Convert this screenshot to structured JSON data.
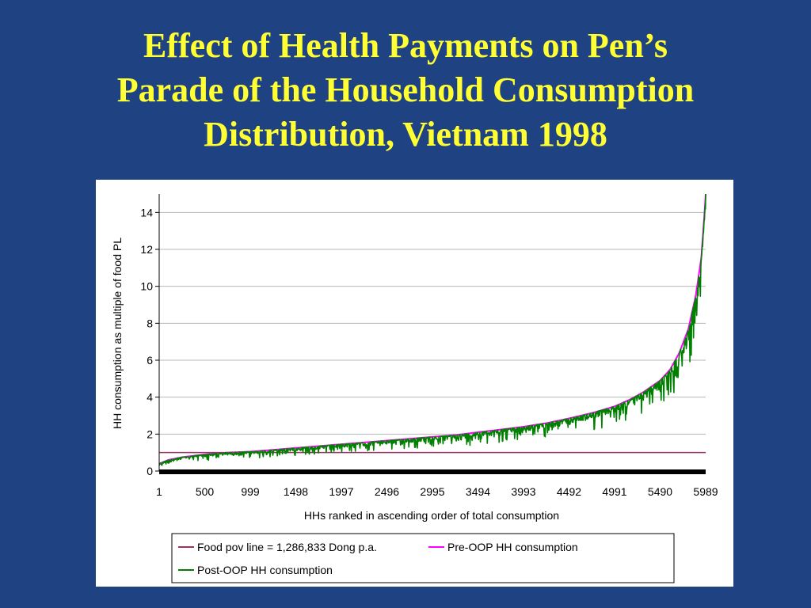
{
  "slide": {
    "title_lines": [
      "Effect of Health Payments on Pen’s",
      "Parade of the Household Consumption",
      "Distribution, Vietnam 1998"
    ]
  },
  "colors": {
    "background": "#1f4282",
    "title": "#ffff33",
    "panel": "#ffffff",
    "food_pov_line": "#993366",
    "pre_oop": "#ff00ff",
    "post_oop": "#008000"
  },
  "chart_data": {
    "type": "line",
    "title": "",
    "xlabel": "HHs ranked in ascending order of total consumption",
    "ylabel": "HH consumption as multiple of food PL",
    "xlim": [
      1,
      5989
    ],
    "ylim": [
      0,
      15
    ],
    "x_ticks": [
      "1",
      "500",
      "999",
      "1498",
      "1997",
      "2496",
      "2995",
      "3494",
      "3993",
      "4492",
      "4991",
      "5490",
      "5989"
    ],
    "y_ticks": [
      "0",
      "2",
      "4",
      "6",
      "8",
      "10",
      "12",
      "14"
    ],
    "grid": "horizontal",
    "legend_position": "bottom",
    "series": [
      {
        "name": "Food pov line = 1,286,833 Dong p.a.",
        "kind": "constant",
        "value": 1.0
      },
      {
        "name": "Pre-OOP HH consumption",
        "kind": "curve",
        "points": [
          [
            1,
            0.4
          ],
          [
            100,
            0.6
          ],
          [
            250,
            0.75
          ],
          [
            500,
            0.9
          ],
          [
            750,
            1.0
          ],
          [
            999,
            1.05
          ],
          [
            1250,
            1.15
          ],
          [
            1498,
            1.25
          ],
          [
            1750,
            1.35
          ],
          [
            1997,
            1.45
          ],
          [
            2250,
            1.55
          ],
          [
            2496,
            1.65
          ],
          [
            2750,
            1.75
          ],
          [
            2995,
            1.85
          ],
          [
            3250,
            1.95
          ],
          [
            3494,
            2.1
          ],
          [
            3750,
            2.25
          ],
          [
            3993,
            2.4
          ],
          [
            4250,
            2.6
          ],
          [
            4492,
            2.85
          ],
          [
            4750,
            3.15
          ],
          [
            4991,
            3.5
          ],
          [
            5150,
            3.85
          ],
          [
            5300,
            4.25
          ],
          [
            5490,
            4.9
          ],
          [
            5600,
            5.5
          ],
          [
            5700,
            6.4
          ],
          [
            5800,
            7.7
          ],
          [
            5880,
            9.5
          ],
          [
            5940,
            11.5
          ],
          [
            5970,
            13.5
          ],
          [
            5989,
            15.0
          ]
        ]
      },
      {
        "name": "Post-OOP HH consumption",
        "kind": "curve_with_downward_spikes",
        "note": "",
        "spikes": [
          [
            400,
            0.5
          ],
          [
            1300,
            0.8
          ],
          [
            1550,
            0.95
          ],
          [
            2100,
            1.05
          ],
          [
            2500,
            1.15
          ],
          [
            2950,
            0.8
          ],
          [
            3300,
            1.35
          ],
          [
            3700,
            1.5
          ],
          [
            4000,
            1.5
          ],
          [
            4300,
            1.1
          ],
          [
            4600,
            1.6
          ],
          [
            4800,
            1.9
          ],
          [
            4970,
            2.0
          ],
          [
            5100,
            1.5
          ],
          [
            5290,
            2.2
          ],
          [
            5380,
            2.6
          ],
          [
            5470,
            2.5
          ],
          [
            5620,
            4.7
          ],
          [
            5700,
            5.3
          ],
          [
            5800,
            5.5
          ],
          [
            5880,
            5.2
          ],
          [
            5940,
            5.1
          ],
          [
            5975,
            7.5
          ]
        ]
      }
    ]
  }
}
